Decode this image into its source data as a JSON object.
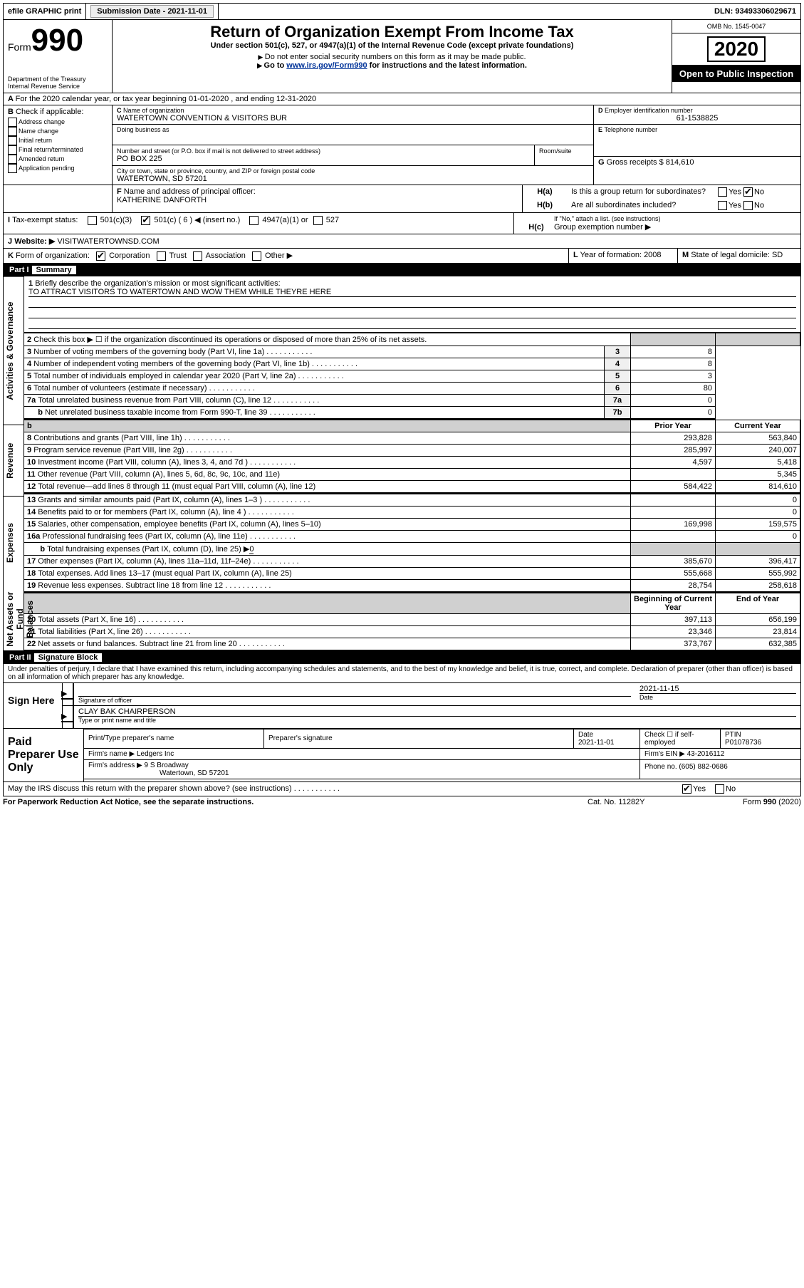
{
  "topbar": {
    "efile": "efile GRAPHIC print",
    "sub_label": "Submission Date - 2021-11-01",
    "dln": "DLN: 93493306029671"
  },
  "header": {
    "form": "Form",
    "form_no": "990",
    "dept": "Department of the Treasury\nInternal Revenue Service",
    "title": "Return of Organization Exempt From Income Tax",
    "subtitle": "Under section 501(c), 527, or 4947(a)(1) of the Internal Revenue Code (except private foundations)",
    "note1": "Do not enter social security numbers on this form as it may be made public.",
    "note2_pre": "Go to ",
    "note2_link": "www.irs.gov/Form990",
    "note2_post": " for instructions and the latest information.",
    "omb": "OMB No. 1545-0047",
    "year": "2020",
    "open": "Open to Public Inspection"
  },
  "period": {
    "line": "For the 2020 calendar year, or tax year beginning 01-01-2020    , and ending 12-31-2020"
  },
  "boxB": {
    "label": "Check if applicable:",
    "items": [
      "Address change",
      "Name change",
      "Initial return",
      "Final return/terminated",
      "Amended return",
      "Application pending"
    ]
  },
  "boxC": {
    "name_label": "Name of organization",
    "name": "WATERTOWN CONVENTION & VISITORS BUR",
    "dba_label": "Doing business as",
    "addr_label": "Number and street (or P.O. box if mail is not delivered to street address)",
    "room_label": "Room/suite",
    "addr": "PO BOX 225",
    "city_label": "City or town, state or province, country, and ZIP or foreign postal code",
    "city": "WATERTOWN, SD  57201"
  },
  "boxD": {
    "label": "Employer identification number",
    "val": "61-1538825"
  },
  "boxE": {
    "label": "Telephone number",
    "val": ""
  },
  "boxG": {
    "label": "Gross receipts $",
    "val": "814,610"
  },
  "boxF": {
    "label": "Name and address of principal officer:",
    "val": "KATHERINE DANFORTH"
  },
  "boxH": {
    "a": "Is this a group return for subordinates?",
    "b": "Are all subordinates included?",
    "b_note": "If \"No,\" attach a list. (see instructions)",
    "c": "Group exemption number ▶",
    "a_yes": "Yes",
    "a_no": "No",
    "b_yes": "Yes",
    "b_no": "No"
  },
  "boxI": {
    "label": "Tax-exempt status:",
    "opts": [
      "501(c)(3)",
      "501(c) ( 6 ) ◀ (insert no.)",
      "4947(a)(1) or",
      "527"
    ]
  },
  "boxJ": {
    "label": "Website: ▶",
    "val": "VISITWATERTOWNSD.COM"
  },
  "boxK": {
    "label": "Form of organization:",
    "opts": [
      "Corporation",
      "Trust",
      "Association",
      "Other ▶"
    ]
  },
  "boxL": {
    "label": "Year of formation:",
    "val": "2008"
  },
  "boxM": {
    "label": "State of legal domicile:",
    "val": "SD"
  },
  "part1": {
    "title": "Part I",
    "sub": "Summary"
  },
  "sideLabels": {
    "governance": "Activities & Governance",
    "revenue": "Revenue",
    "expenses": "Expenses",
    "net": "Net Assets or Fund Balances"
  },
  "summary": {
    "l1": "Briefly describe the organization's mission or most significant activities:",
    "l1v": "TO ATTRACT VISITORS TO WATERTOWN AND WOW THEM WHILE THEYRE HERE",
    "l2": "Check this box ▶ ☐  if the organization discontinued its operations or disposed of more than 25% of its net assets.",
    "l3": "Number of voting members of the governing body (Part VI, line 1a)",
    "l4": "Number of independent voting members of the governing body (Part VI, line 1b)",
    "l5": "Total number of individuals employed in calendar year 2020 (Part V, line 2a)",
    "l6": "Total number of volunteers (estimate if necessary)",
    "l7a": "Total unrelated business revenue from Part VIII, column (C), line 12",
    "l7b": "Net unrelated business taxable income from Form 990-T, line 39",
    "v3": "8",
    "v4": "8",
    "v5": "3",
    "v6": "80",
    "v7a": "0",
    "v7b": "0",
    "hb": "b",
    "hprior": "Prior Year",
    "hcurr": "Current Year",
    "l8": "Contributions and grants (Part VIII, line 1h)",
    "p8": "293,828",
    "c8": "563,840",
    "l9": "Program service revenue (Part VIII, line 2g)",
    "p9": "285,997",
    "c9": "240,007",
    "l10": "Investment income (Part VIII, column (A), lines 3, 4, and 7d )",
    "p10": "4,597",
    "c10": "5,418",
    "l11": "Other revenue (Part VIII, column (A), lines 5, 6d, 8c, 9c, 10c, and 11e)",
    "p11": "",
    "c11": "5,345",
    "l12": "Total revenue—add lines 8 through 11 (must equal Part VIII, column (A), line 12)",
    "p12": "584,422",
    "c12": "814,610",
    "l13": "Grants and similar amounts paid (Part IX, column (A), lines 1–3 )",
    "p13": "",
    "c13": "0",
    "l14": "Benefits paid to or for members (Part IX, column (A), line 4 )",
    "p14": "",
    "c14": "0",
    "l15": "Salaries, other compensation, employee benefits (Part IX, column (A), lines 5–10)",
    "p15": "169,998",
    "c15": "159,575",
    "l16a": "Professional fundraising fees (Part IX, column (A), line 11e)",
    "p16a": "",
    "c16a": "0",
    "l16b": "Total fundraising expenses (Part IX, column (D), line 25) ▶",
    "v16b": "0",
    "l17": "Other expenses (Part IX, column (A), lines 11a–11d, 11f–24e)",
    "p17": "385,670",
    "c17": "396,417",
    "l18": "Total expenses. Add lines 13–17 (must equal Part IX, column (A), line 25)",
    "p18": "555,668",
    "c18": "555,992",
    "l19": "Revenue less expenses. Subtract line 18 from line 12",
    "p19": "28,754",
    "c19": "258,618",
    "hbeg": "Beginning of Current Year",
    "hend": "End of Year",
    "l20": "Total assets (Part X, line 16)",
    "p20": "397,113",
    "c20": "656,199",
    "l21": "Total liabilities (Part X, line 26)",
    "p21": "23,346",
    "c21": "23,814",
    "l22": "Net assets or fund balances. Subtract line 21 from line 20",
    "p22": "373,767",
    "c22": "632,385"
  },
  "part2": {
    "title": "Part II",
    "sub": "Signature Block"
  },
  "sig": {
    "decl": "Under penalties of perjury, I declare that I have examined this return, including accompanying schedules and statements, and to the best of my knowledge and belief, it is true, correct, and complete. Declaration of preparer (other than officer) is based on all information of which preparer has any knowledge.",
    "sign_here": "Sign Here",
    "sig_officer": "Signature of officer",
    "date": "Date",
    "date_v": "2021-11-15",
    "name": "CLAY BAK CHAIRPERSON",
    "name_label": "Type or print name and title",
    "paid": "Paid Preparer Use Only",
    "pt_name": "Print/Type preparer's name",
    "pt_sig": "Preparer's signature",
    "pt_date": "Date",
    "pt_date_v": "2021-11-01",
    "pt_check": "Check ☐ if self-employed",
    "ptin_l": "PTIN",
    "ptin": "P01078736",
    "firm_name_l": "Firm's name   ▶",
    "firm_name": "Ledgers Inc",
    "firm_ein_l": "Firm's EIN ▶",
    "firm_ein": "43-2016112",
    "firm_addr_l": "Firm's address ▶",
    "firm_addr": "9 S Broadway",
    "firm_city": "Watertown, SD  57201",
    "phone_l": "Phone no.",
    "phone": "(605) 882-0686",
    "discuss": "May the IRS discuss this return with the preparer shown above? (see instructions)",
    "d_yes": "Yes",
    "d_no": "No"
  },
  "footer": {
    "left": "For Paperwork Reduction Act Notice, see the separate instructions.",
    "mid": "Cat. No. 11282Y",
    "right": "Form 990 (2020)"
  }
}
